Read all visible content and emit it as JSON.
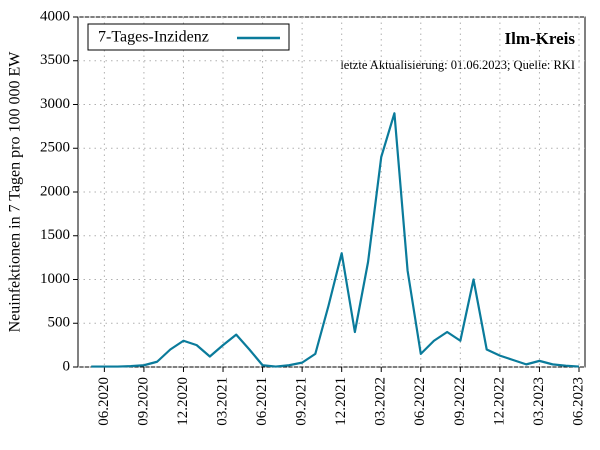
{
  "chart_data": {
    "type": "line",
    "title": "Ilm-Kreis",
    "subtitle": "letzte Aktualisierung: 01.06.2023; Quelle: RKI",
    "y_label": "Neuinfektionen in 7 Tagen pro 100 000 EW",
    "x": [
      "05.2020",
      "06.2020",
      "07.2020",
      "08.2020",
      "09.2020",
      "10.2020",
      "11.2020",
      "12.2020",
      "01.2021",
      "02.2021",
      "03.2021",
      "04.2021",
      "05.2021",
      "06.2021",
      "07.2021",
      "08.2021",
      "09.2021",
      "10.2021",
      "11.2021",
      "12.2021",
      "01.2022",
      "02.2022",
      "03.2022",
      "04.2022",
      "05.2022",
      "06.2022",
      "07.2022",
      "08.2022",
      "09.2022",
      "10.2022",
      "11.2022",
      "12.2022",
      "01.2023",
      "02.2023",
      "03.2023",
      "04.2023",
      "05.2023",
      "06.2023"
    ],
    "series": [
      {
        "name": "7-Tages-Inzidenz",
        "color": "#0a7b9b",
        "values": [
          5,
          5,
          5,
          10,
          20,
          60,
          200,
          300,
          250,
          120,
          250,
          370,
          200,
          20,
          5,
          20,
          50,
          150,
          700,
          1300,
          400,
          1200,
          2400,
          2900,
          1100,
          150,
          300,
          400,
          300,
          1000,
          200,
          130,
          80,
          30,
          70,
          30,
          15,
          5
        ]
      }
    ],
    "xlim": [
      "04.2020",
      "06.2023"
    ],
    "xticks": [
      "06.2020",
      "09.2020",
      "12.2020",
      "03.2021",
      "06.2021",
      "09.2021",
      "12.2021",
      "03.2022",
      "06.2022",
      "09.2022",
      "12.2022",
      "03.2023",
      "06.2023"
    ],
    "ylim": [
      0,
      4000
    ],
    "yticks": [
      0,
      500,
      1000,
      1500,
      2000,
      2500,
      3000,
      3500,
      4000
    ],
    "grid": true,
    "legend": "upper left"
  }
}
